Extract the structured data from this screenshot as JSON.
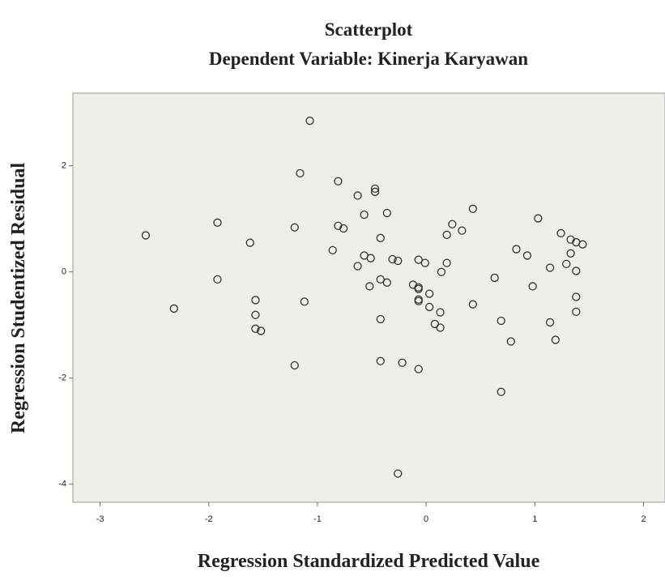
{
  "chart_data": {
    "type": "scatter",
    "title": "Scatterplot",
    "subtitle": "Dependent Variable: Kinerja Karyawan",
    "xlabel": "Regression Standardized Predicted Value",
    "ylabel": "Regression Studentized Residual",
    "color": "#333333",
    "background": "#efefe9",
    "xlim": [
      -3.25,
      2.19
    ],
    "ylim": [
      -4.34,
      3.37
    ],
    "xticks": [
      -3,
      -2,
      -1,
      0,
      1,
      2
    ],
    "yticks": [
      -4,
      -2,
      0,
      2
    ],
    "x": [
      -2.58,
      -2.32,
      -1.92,
      -1.92,
      -1.62,
      -1.57,
      -1.57,
      -1.57,
      -1.52,
      -1.21,
      -1.21,
      -1.16,
      -1.12,
      -1.07,
      -0.86,
      -0.81,
      -0.81,
      -0.76,
      -0.63,
      -0.63,
      -0.57,
      -0.57,
      -0.52,
      -0.51,
      -0.47,
      -0.47,
      -0.42,
      -0.42,
      -0.42,
      -0.42,
      -0.36,
      -0.36,
      -0.31,
      -0.26,
      -0.26,
      -0.22,
      -0.12,
      -0.07,
      -0.07,
      -0.07,
      -0.07,
      -0.07,
      -0.07,
      -0.01,
      0.03,
      0.03,
      0.08,
      0.13,
      0.13,
      0.14,
      0.19,
      0.19,
      0.24,
      0.33,
      0.43,
      0.43,
      0.63,
      0.69,
      0.69,
      0.78,
      0.83,
      0.93,
      0.98,
      1.03,
      1.14,
      1.14,
      1.19,
      1.24,
      1.29,
      1.33,
      1.33,
      1.38,
      1.38,
      1.38,
      1.38,
      1.44
    ],
    "y": [
      0.69,
      -0.69,
      0.93,
      -0.14,
      0.55,
      -0.53,
      -0.81,
      -1.07,
      -1.11,
      0.84,
      -1.76,
      1.86,
      -0.56,
      2.85,
      0.41,
      1.71,
      0.87,
      0.82,
      1.44,
      0.11,
      1.08,
      0.31,
      -0.27,
      0.26,
      1.57,
      1.51,
      0.64,
      -0.14,
      -0.89,
      -1.68,
      -0.2,
      1.11,
      0.24,
      0.21,
      -3.8,
      -1.71,
      -0.24,
      0.23,
      -0.29,
      -0.32,
      -0.52,
      -0.55,
      -1.83,
      0.17,
      -0.41,
      -0.66,
      -0.98,
      -0.76,
      -1.05,
      0.0,
      0.7,
      0.17,
      0.9,
      0.78,
      1.19,
      -0.61,
      -0.11,
      -0.92,
      -2.26,
      -1.31,
      0.43,
      0.31,
      -0.27,
      1.01,
      0.08,
      -0.95,
      -1.28,
      0.73,
      0.15,
      0.61,
      0.35,
      0.56,
      0.02,
      -0.47,
      -0.75,
      0.52
    ]
  }
}
